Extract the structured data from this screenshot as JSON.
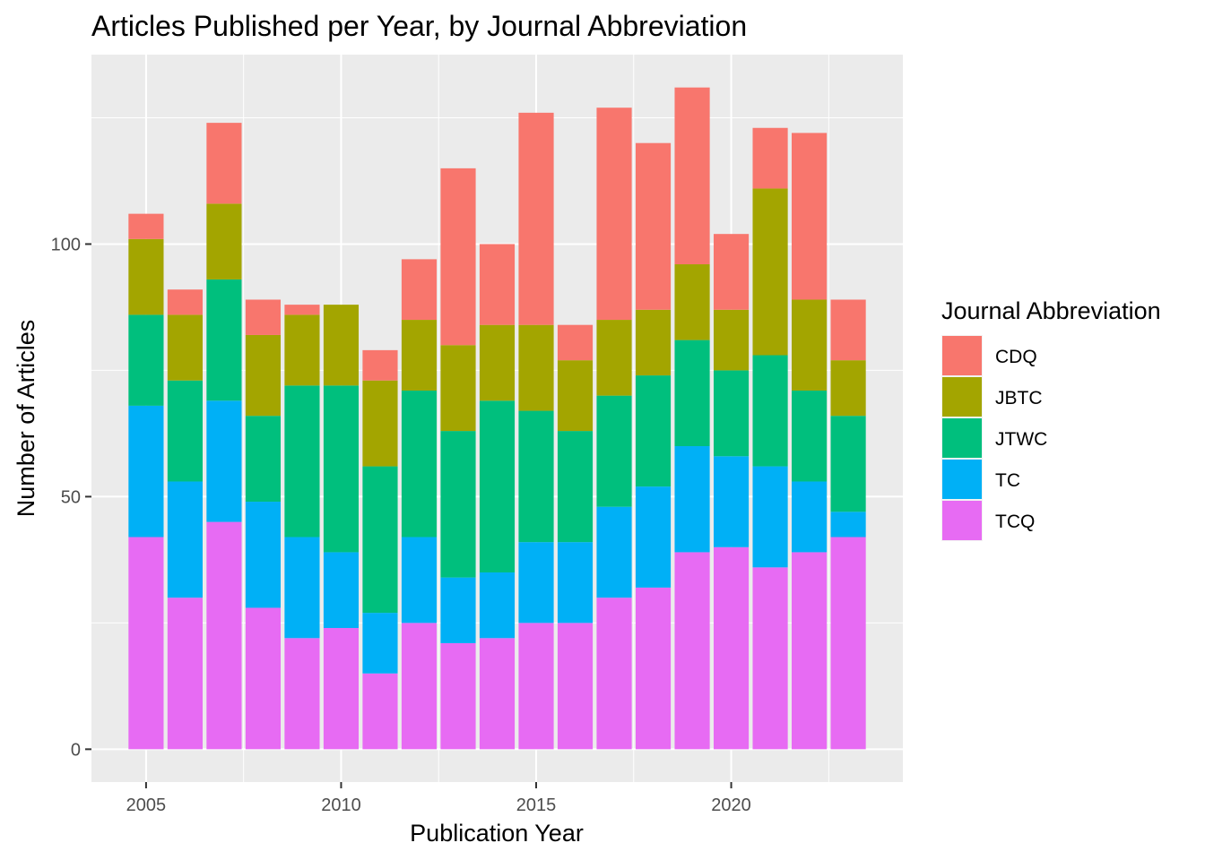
{
  "chart_data": {
    "type": "bar",
    "stacked": true,
    "title": "Articles Published per Year, by Journal Abbreviation",
    "xlabel": "Publication Year",
    "ylabel": "Number of Articles",
    "x": [
      2005,
      2006,
      2007,
      2008,
      2009,
      2010,
      2011,
      2012,
      2013,
      2014,
      2015,
      2016,
      2017,
      2018,
      2019,
      2020,
      2021,
      2022,
      2023
    ],
    "x_ticks": [
      "2005",
      "2010",
      "2015",
      "2020"
    ],
    "y_ticks": [
      "0",
      "50",
      "100"
    ],
    "xlim": [
      2003.6,
      2024.4
    ],
    "ylim": [
      -6.5,
      137.5
    ],
    "grid": true,
    "background": "#EBEBEB",
    "legend_title": "Journal Abbreviation",
    "legend_position": "right",
    "stack_order_bottom_to_top": [
      "TCQ",
      "TC",
      "JTWC",
      "JBTC",
      "CDQ"
    ],
    "series": [
      {
        "name": "CDQ",
        "color": "#F8766D",
        "values": [
          5,
          5,
          16,
          7,
          2,
          0,
          6,
          12,
          35,
          16,
          42,
          7,
          42,
          33,
          35,
          15,
          12,
          33,
          12
        ]
      },
      {
        "name": "JBTC",
        "color": "#A3A500",
        "values": [
          15,
          13,
          15,
          16,
          14,
          16,
          17,
          14,
          17,
          15,
          17,
          14,
          15,
          13,
          15,
          12,
          33,
          18,
          11
        ]
      },
      {
        "name": "JTWC",
        "color": "#00BF7D",
        "values": [
          18,
          20,
          24,
          17,
          30,
          33,
          29,
          29,
          29,
          34,
          26,
          22,
          22,
          22,
          21,
          17,
          22,
          18,
          19
        ]
      },
      {
        "name": "TC",
        "color": "#00B0F6",
        "values": [
          26,
          23,
          24,
          21,
          20,
          15,
          12,
          17,
          13,
          13,
          16,
          16,
          18,
          20,
          21,
          18,
          20,
          14,
          5
        ]
      },
      {
        "name": "TCQ",
        "color": "#E76BF3",
        "values": [
          42,
          30,
          45,
          28,
          22,
          24,
          15,
          25,
          21,
          22,
          25,
          25,
          30,
          32,
          39,
          40,
          36,
          39,
          42
        ]
      }
    ]
  }
}
